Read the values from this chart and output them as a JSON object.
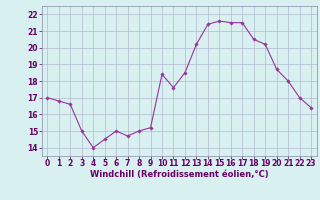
{
  "x": [
    0,
    1,
    2,
    3,
    4,
    5,
    6,
    7,
    8,
    9,
    10,
    11,
    12,
    13,
    14,
    15,
    16,
    17,
    18,
    19,
    20,
    21,
    22,
    23
  ],
  "y": [
    17.0,
    16.8,
    16.6,
    15.0,
    14.0,
    14.5,
    15.0,
    14.7,
    15.0,
    15.2,
    18.4,
    17.6,
    18.5,
    20.2,
    21.4,
    21.6,
    21.5,
    21.5,
    20.5,
    20.2,
    18.7,
    18.0,
    17.0,
    16.4
  ],
  "line_color": "#993399",
  "marker": "D",
  "marker_size": 1.8,
  "line_width": 0.8,
  "background_color": "#d8f0f0",
  "grid_color": "#b0b8d0",
  "xlabel": "Windchill (Refroidissement éolien,°C)",
  "xlabel_color": "#660066",
  "xlabel_fontsize": 6.0,
  "yticks": [
    14,
    15,
    16,
    17,
    18,
    19,
    20,
    21,
    22
  ],
  "xticks": [
    0,
    1,
    2,
    3,
    4,
    5,
    6,
    7,
    8,
    9,
    10,
    11,
    12,
    13,
    14,
    15,
    16,
    17,
    18,
    19,
    20,
    21,
    22,
    23
  ],
  "ylim": [
    13.5,
    22.5
  ],
  "xlim": [
    -0.5,
    23.5
  ],
  "tick_fontsize": 5.5,
  "tick_color": "#660066",
  "spine_color": "#8888aa"
}
